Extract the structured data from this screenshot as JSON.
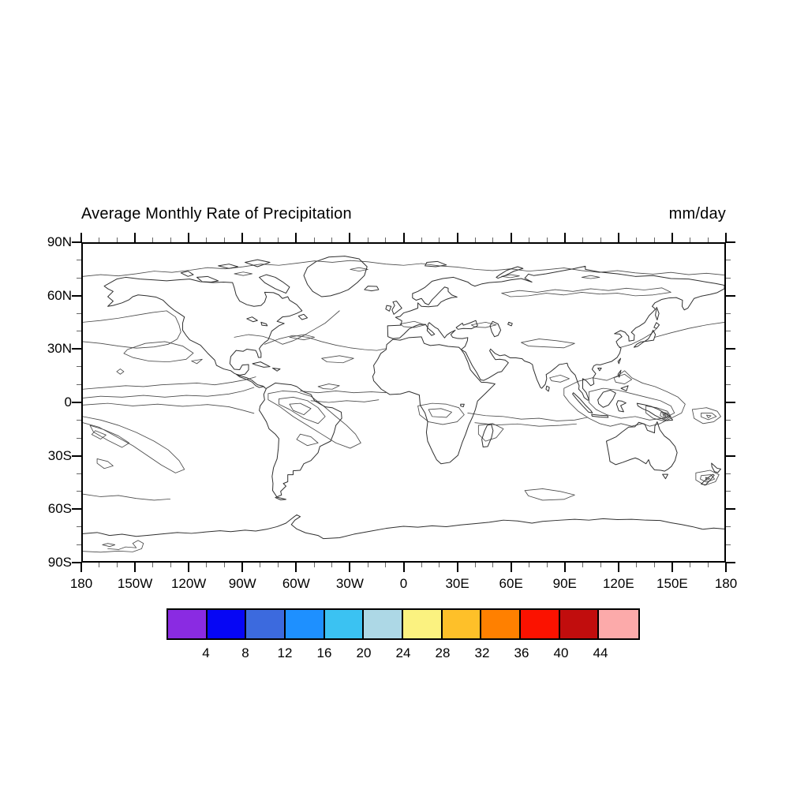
{
  "title": "Average Monthly Rate of Precipitation",
  "units_label": "mm/day",
  "chart_data": {
    "type": "contour",
    "title": "Average Monthly Rate of Precipitation",
    "units": "mm/day",
    "projection": "cylindrical equidistant world map, 90N-90S / 180W-180E",
    "grid": "off",
    "x_axis": {
      "tick_labels": [
        "180",
        "150W",
        "120W",
        "90W",
        "60W",
        "30W",
        "0",
        "30E",
        "60E",
        "90E",
        "120E",
        "150E",
        "180"
      ],
      "major_interval_deg": 30,
      "minor_interval_deg": 10,
      "range_deg": [
        -180,
        180
      ]
    },
    "y_axis": {
      "tick_labels": [
        "90N",
        "60N",
        "30N",
        "0",
        "30S",
        "60S",
        "90S"
      ],
      "major_interval_deg": 30,
      "minor_interval_deg": 10,
      "range_deg": [
        90,
        -90
      ]
    },
    "contour_interval_mm_per_day": 4,
    "colorbar": {
      "orientation": "horizontal",
      "position": "bottom",
      "boundary_labels": [
        "4",
        "8",
        "12",
        "16",
        "20",
        "24",
        "28",
        "32",
        "36",
        "40",
        "44"
      ],
      "colors": [
        "#8A2BE2",
        "#0606F5",
        "#3C6ADE",
        "#1E90FF",
        "#3BC2F2",
        "#ADD8E6",
        "#FBF280",
        "#FEC029",
        "#FF8000",
        "#FB1200",
        "#C10D0D",
        "#FCAAAA"
      ]
    }
  },
  "map_geometry": {
    "coastlines": [
      "M -168 -66 L -161 -70 -156 -71 -148 -70 -140 -69.5 -133 -69 -127 -69.5 -120 -70 -114 -68.5 -107 -68 -101 -68.3 -96 -68 -95 -65 -94 -61 -92 -57.5 -88 -55.5 -84 -54.5 -80 -55 -78 -57 -77 -60 -78 -62.5 -73 -62.3 -70 -61 -68 -59 -65 -60 -64 -58 -60 -55.5 -57 -52 -60 -50.5 -64 -49 -68 -48.5 -71 -46 -67 -44.8 -70 -43.5 -74 -40.5 -75 -38 -76 -35.5 -78 -34 -80 -32 -81 -30.5 -80 -28 -80 -25.5 -81.5 -25.5 -82 -27.5 -83 -29.5 -85 -29.8 -88 -30.2 -90 -29 -94 -29.5 -97 -26 -97.5 -22 -95 -18.8 -92 -18.6 -90.5 -21.2 -87 -21.5 -87 -18.5 -89 -16 -92 -15.5 -94 -16 -92 -14.5 -88 -13 -85 -11.5 -83 -9.5 -81 -8.5 -78.5 -9 -77.5 -8 -79 -9.3 -82 -10 -85 -12.5 -88 -14 -92 -15.2 -95 -16.5 -97 -18 -101 -19 -105 -21 -106 -24 -110 -28 -114 -32.5 -117 -34 -120 -35.5 -122 -38 -124 -41 -124 -45 -123 -48.5 -126 -50.5 -129 -52.5 -132 -55 -135 -58 -139 -59.8 -144 -60.5 -149 -61 -152 -60 -154 -58.3 -158 -56.5 -163 -55 -166 -54.5 -163 -57.5 -166 -60 -163 -63 -166 -64.5 Z",
      "M -46 -60 L -51 -63 -54 -67 -56 -72 -54 -76.5 -49 -80 -42 -82.5 -33 -83 -25 -81.5 -20.5 -77 -22 -72 -26 -68 -31 -64 -36 -62 -41 -60.5 Z",
      "M -66 -62 L -72 -64.5 -78 -68 -81 -71 -77 -72.5 -72 -71 -68 -68.5 -64 -65.5 Z",
      "M -104 -69 L -110 -71.5 -116 -71 -113 -68.5 -108 -68.3 Z",
      "M -82 -77 L -89 -79.5 -82 -81 -75 -79.5 Z",
      "M -98 -76 L -104 -77.5 -98 -78.5 -93 -77 Z",
      "M -121 -71.5 L -125 -73.5 -121 -74.5 -118 -72.5 Z",
      "M -57 -47 L -59 -49 -56 -50 -54 -48 Z",
      "M -22 -64 L -18 -63.3 -14 -64 -15 -65.8 -20 -66 Z",
      "M 12 -77.5 L 18 -77 24 -78 19 -80 13 -79.5 Z",
      "M 53 -70.5 L 57 -72 62 -74.5 67 -76 64 -77 58 -75 54 -72.5 52 -71 Z",
      "M -5.5 -50 L -3 -52 -1 -53.5 -2.5 -55.5 -4 -57.5 -6 -57 -5 -55 -6.5 -52.5 Z",
      "M -8 -51.8 L -10 -53 -9.5 -55 -7 -54.5 Z",
      "M -77 -8 L -72 -11 -68 -10.5 -63 -10 -60 -9 -56 -6 -52 -4.5 -50 -1 -47 0.8 -44 2.5 -40 3 -35 5.5 -34.7 9 -38 13 -39 17 -41 22 -47 25 -48 28.5 -52 33 -56 34.8 -58 38.5 -62 38.8 -62 41 -65 41 -65 45 -67.5 46 -66 47.5 -69 50.5 -68.5 52.5 -72 54 -69 55.3 -66 55 -71 53.8 -73.5 50 -73.3 46 -73.8 42 -73 37 -71 32 -70.3 26 -70 20.5 -72 18 -75.5 15 -77 11 -80 6 -81 4.5 -80.5 2 -78 -1.5 -78.5 -4.5 Z",
      "M -6 -35.8 L -2 -35.3 3 -36.8 10 -37.2 11.5 -33.5 15 -32.3 20 -32.8 25 -31.8 31 -31.3 32.3 -30 34 -27.5 36 -23 37.5 -18.5 40 -15.5 43.5 -11.5 47 -11.3 51.3 -10.5 45.8 -5 41.5 -0.8 40.3 4 38.8 8 36.5 13 34.8 18 32.8 23 30.5 30 26 34 21 34.8 18.5 32.5 16.5 28.5 13.5 22 12.8 17 13.5 11 12 6 9.3 1.5 8.8 -4.2 3 -6.2 -1.8 -4.8 -7.8 -4.5 -12.5 -7.5 -16.8 -12.3 -17.3 -14.8 -16.2 -17 -16.8 -21 -14.5 -24.5 -12.8 -27.8 -9.8 -30 -9.5 -32.8 Z",
      "M 49.2 12.5 L 50.2 16 49.3 20 47.2 25 44.6 25.3 43.9 21 45.3 16.5 46.9 13 Z",
      "M -9 -43.5 L -8.8 -37.3 -6 -36.2 -2.2 -36.6 0.2 -38.8 3.2 -41.8 7 -43.6 9 -44.2 12.3 -44.3 13.8 -42 16.2 -40 17.4 -38.7 15.7 -38 13.2 -40.8 13.8 -44.6 14.4 -45.3 17.8 -42.5 19.2 -41.8 21 -39.3 23 -36.6 24.2 -38.2 26.2 -39.6 29 -41 26.5 -38.5 27.5 -37 30.3 -36.3 33 -36.2 36 -36.8 35.8 -35 34.5 -31.8 32.3 -30 34.8 -28.5 36.5 -25 38.5 -21 41 -17 43.2 -12.8 45 -12.5 48 -14 52.8 -17 55 -17.5 58.8 -22.5 57 -24 54 -24.5 51.5 -24.3 50 -26.5 48.3 -29.3 48.8 -30.3 51.3 -27.8 54 -26.5 56.8 -27 59.8 -25.3 63 -25.3 66.5 -24.8 67.8 -23.5 70.8 -22.5 72.3 -21.5 72.8 -19 74.8 -13 76.8 -8.5 77.5 -8 79.5 -10.3 80.3 -13.5 80 -15.8 82.3 -17.3 85 -19.5 87.3 -21.5 89.3 -21.8 91.8 -22.3 92.3 -20.5 94 -17.8 96.3 -15.5 97.5 -12 98.5 -9.5 98.3 -7.5 100.3 -5.3 101.3 -2.8 103.3 -1.3 104 -1.4 102.5 -5.5 100.5 -8 100.5 -13.5 102.5 -12.3 105 -9.5 106.8 -10.5 106.3 -14 107.8 -16.3 105.8 -18.8 106.8 -20.8 108.3 -21.5 110.3 -21.3 113.5 -22.3 116.8 -23.3 119.8 -25.5 121.3 -28 122 -30.8 120.3 -32.3 119.3 -34.5 120.8 -36 122.5 -37.3 121.3 -38.8 118.3 -39 121.8 -40.8 124.3 -39.8 125.3 -38.5 126.3 -37.5 126.5 -34.8 129.3 -35.3 129.5 -38.3 127.8 -39.8 130.3 -42.3 132.3 -43.3 135.3 -45.3 137.8 -49.3 140.3 -51.8 141.3 -53 139.5 -54.5 141 -56.5 145 -58.5 149 -59.3 153 -59.5 156.5 -58 156.3 -54.5 157.5 -52.5 159.5 -53.5 161.3 -56.3 163 -59 167 -60.3 172 -61.3 176 -62.3 180 -64.5 180 -66.5 175 -67.5 170 -68.3 160 -70 150 -70.3 140 -72 130 -71.5 120 -73 110 -74 102 -75.5 102 -77.3 95 -75.8 88 -74.5 80 -73 73 -72 70 -72.8 68 -70.5 72 -68.3 66 -70.3 60 -69.5 55 -68.5 48 -68 44 -67.3 40 -66 38 -66.8 36 -68.3 33 -69.3 28 -71 22 -70.3 16 -68.8 12 -65.3 8 -63 5 -61.8 5 -59.3 7 -58 10 -59 12 -56.3 14 -55.4 16 -58.3 18 -60.3 21 -63.5 23 -65.5 25 -64.8 25 -63 27 -61 30 -59.8 27 -59.5 24 -58.5 21 -57 19 -54.8 14 -54.3 10 -54.5 9 -55.5 8 -56.5 8 -53.5 4 -52 0 -50.8 -2 -48.8 -4.5 -48.3 -1 -46.3 -1.5 -43.8 Z",
      "M 50 -46 L 53 -44.5 54.5 -41 53 -38 51 -37.3 49.5 -40 48.5 -43.5 Z",
      "M 29.5 -42.5 L 33 -45 33.5 -43.8 37 -45 40.5 -46.5 41.5 -43.5 38 -41.8 33.5 -42 30.5 -41.5 Z",
      "M 59 -45.5 L 61 -44.8 60.5 -43.5 58.5 -44.3 Z",
      "M -88 -47.5 L -85 -48.5 -82 -46.5 -84.5 -45.8 Z",
      "M -80 -45.5 L -77 -44.5 -76.5 -43.5 -79.5 -43.8 Z",
      "M 32 1 L 34 1 33.5 2.5 32 2 Z",
      "M 140.5 -42.5 L 141.8 -45.3 143.5 -44 142 -42 Z",
      "M 140 -41 L 141.3 -38.5 140.3 -35.3 136.8 -34.8 133 -34.3 130.8 -33 129.3 -31.3 131.3 -31.8 134 -33.8 137.3 -36 139 -38.8 Z",
      "M 142 -54 L 143.3 -50.5 142.3 -46.8 141.3 -49.5 Z",
      "M 120.3 -23.3 L 121.8 -25 120.8 -22 Z",
      "M 120.3 -16 L 122 -18.3 121 -14.3 Z",
      "M 122 -8 L 126 -9.5 125 -6.5 Z",
      "M 109 -19.5 L 111 -19.5 110 -18 Z",
      "M 109 -1.5 L 112 -5.8 116 -7 119 -5.3 117.5 -2 115 1.5 112 2.8 109.5 0.8 Z",
      "M 95.3 -5.5 L 99 -2 102 1.5 105 4.5 106 6 103.8 5.5 100.5 2 97 -2 94.8 -4.8 Z",
      "M 105.5 6.8 L 110 7.3 114.5 7.5 114.8 8.5 110 8.3 105.8 7.8 Z",
      "M 119.5 1 L 120.8 4.8 123.5 5.3 121.8 1.8 124.8 0.3 122.3 -0.8 120.3 -1 Z",
      "M 131 0.5 L 135 1.3 139 2.3 143 4 146 5.8 149 7.5 151 10 147.5 10.3 144 8.8 141 7.3 137.5 5 134 3.5 131.5 2 Z",
      "M 172.8 34.5 L 175.8 37.3 178 37.8 176.3 39.8 174.5 39.3 173 36.5 Z",
      "M 173.5 40.8 L 170.5 43 167 46.3 169.5 46.8 172.3 43.8 174.3 41.3 Z",
      "M 145.3 40.8 L 148.3 40.8 147 43.3 Z",
      "M -84.8 -22 L -80.3 -23 -75 -20.3 -78.5 -20 -83 -21.3 Z",
      "M -73.5 -19.5 L -69.3 -19 -71 -17.8 Z",
      "M 80.3 -9.3 L 81.8 -8.5 81.3 -6.3 79.9 -7.5 Z",
      "M 113.8 22 L 115.3 30 115.8 33.5 119 35.3 123 34 127.5 32.3 130 31.5 132 32.3 136 34.8 137.5 32.5 138.5 35.5 140.8 38.3 144.3 38.5 146.5 39 148.5 37.8 150.3 36.3 152.3 33 153.5 28.5 152.3 25 149.3 21.3 146.3 19 143.8 15.5 142.3 11 141 13.5 140.8 17.3 136.8 15.8 135.3 12.3 132 11.3 129.8 13.8 126.3 14 122.3 17 119.3 19.5 116 21 Z",
      "M -180 74.5 L -172 73.8 -165 75.5 -158 74.8 -150 76 -142 75.3 -134 74.5 -127 73.8 -119 74.3 -111 73.5 -103 72.8 -97 73.3 -89 72.5 -83 73 -77 72 -71 70.5 -66 68.5 -62 65.3 -60 63.8 -58 64.8 -61 66.8 -63 69.3 -60 71.8 -55 74 -48 75.5 -45 77.3 -36 76.8 -28 74.8 -20 73.3 -10 71.5 0 70.3 8 70.8 16 70 24 70.5 32 69.5 40 68.8 48 68 56 66.8 64 67.3 72 68.5 78 67.5 88 66.8 96 66.3 104 66.8 112 66 120 66.5 128 66.3 136 66.8 144 67 150 68.3 156 69.3 162 70.5 168 72 174 71.3 180 71.8"
    ],
    "contours": [
      "M -180 -71.5 L -170 -72.5 -160 -71.8 -150 -73 -140 -74.5 -130 -73.8 -120 -75 -110 -76.5 -100 -75.8 -90 -77 -80 -78.5 -70 -77.8 -60 -79 -50 -80.3 -40 -79.5 -30 -80.5 -20 -79.8 -10 -78.5 0 -77.8 10 -78.8 20 -77.5 30 -76.8 40 -75.5 50 -74.8 60 -75.8 70 -74.5 80 -75.3 90 -76.3 100 -74.8 110 -73.8 120 -74.8 130 -73.5 140 -72.8 150 -73.8 160 -72.5 170 -73.3 180 -72.3",
      "M -95 -73 L -90 -74 -85 -73 -90 -72 Z",
      "M 55 -71.5 L 60 -72.5 65 -71.8 60 -70.8 Z",
      "M 100 -71 L 105 -72 110 -71 105 -70.3 Z",
      "M -30 -75.5 L -25 -76.5 -20 -75.5 -25 -74.5 Z",
      "M 141 -37 L 150 -39.5 160 -42 170 -44 180 -45.5",
      "M -180 -45.5 L -170 -46.5 -160 -47.8 -150 -49.5 -141 -51 -133 -52 -128 -48.5 -126 -44 -125 -40 -127 -36 -132 -33 -140 -31.5 -150 -30.8 -160 -32 -170 -33.5 -180 -34.5",
      "M -155 -30 L -145 -33.5 -134 -34.5 -124 -32 -118 -28 -122 -24.5 -132 -23 -143 -23.5 -152 -25.5 -157 -27.8 Z",
      "M -119 -23.5 L -113 -24.5 -116 -22 Z",
      "M -159 -19 L -157 -17.5 -159 -16 -161 -17.5 Z",
      "M -180 -7.5 L -168 -8.5 -156 -9.5 -146 -9 -136 -10 -126 -10.5 -116 -11 -106 -10 -96 -11.5 -88 -13 -83 -14.5",
      "M -180 -2.5 L -170 -3.5 -158 -3 -146 -4 -134 -3 -122 -4 -110 -3.5 -98 -4.8 -90 -6.5 -84 -8.5",
      "M -180 1.5 L -166 0.5 -152 2 -138 1 -124 2.2 -110 1.2 -98 2.5 -90 4.5 -84 6.2",
      "M -180 8 L -170 10 -160 13 -150 17 -140 22 -132 27 -126 33 -123 38 -128 40 -136 35.5 -144 30 -152 24.5 -162 19 -171 14 -180 11.5",
      "M -176 13 L -168 15.5 -160 19 -154 23 -158 25.5 -166 21.5 -174 16.8 Z",
      "M -173 16 L -167 18.5 -170 20.8 -175 18.2 Z",
      "M -172 32 L -166 33.5 -163 36 -168 37.5 -172 34.5 Z",
      "M -58 -6.5 L -48 -5.5 -38 -6.5 -28 -5.5 -18 -6 -10 -5.5",
      "M -52 -1 L -42 0 -32 -1 -22 -0.3 -14 -1.5",
      "M -48 -9 L -42 -10.5 -36 -9.5 -40 -7.5 -45 -7.8 Z",
      "M -76 -5 L -68 -6.5 -60 -6 -52 -3.5 -45 2 -38 8 -32 13 -27 18 -24 23 -30 26 -38 23 -46 18 -54 13 -62 8 -70 2 -76 -1.5 Z",
      "M -70 -2 L -62 -3 -54 -1 -48 3 -44 8 -48 12 -56 9 -64 4 -70 1 Z",
      "M -64 1 L -58 0.5 -52 3.5 -56 7 -62 4.5 Z",
      "M -58 18 L -52 19.5 -48 23 -54 24.5 -60 21 Z",
      "M 8 2 L 16 0.5 24 1 31 3 34 7 30 11 22 12.5 14 11 9 7 Z",
      "M 14 4 L 21 3.5 27 5.5 24 8.5 16 8 Z",
      "M 36 6 L 46 7.5 56 8 66 9.5 76 9 86 10.5 96 10 103 8.5",
      "M 40 11.5 L 52 12.8 64 12.2 76 13.5 88 13 97 12.2",
      "M 42 13 L 50 12 56 15 52 20 46 22 42 18 Z",
      "M 82 -14 L 88 -15.5 93 -13.5 88 -11.5 83 -12.3 Z",
      "M 90 -8 L 98 -12 106 -14 114 -12.5 120 -15 124 -18 128 -14 134 -11 141 -9 148 -6 154 -3 158 1 156 6 150 9 144 12 138 13.5 134 12 128 13.5 122 12 116 13.5 110 12 104 9 98 5 93 0 90 -4 Z",
      "M 104 -6 L 112 -8 120 -7 128 -5 136 -3 144 -1 150 2 152 6 146 9 138 10 130 8 122 9 114 7 108 4 104 0 Z",
      "M 136 2 L 142 3 148 5 150 8 146 10.5 140 9 136 6 Z",
      "M 144.5 5.5 L 148 6 149.2 8 146.5 9.2 144 7.5 Z",
      "M 145.3 6.2 L 147.8 6.7 148.2 8 146.2 8.5 Z",
      "M 146 6.9 L 147.3 7.2 147 8 Z",
      "M 162 4 L 170 3 176 5 178 8 174 11 168 12 163 9 Z",
      "M 167 6 L 173 6 175.5 8 171 9.8 167 8.2 Z",
      "M 170 7.2 L 172.5 7.6 171 8.8 Z",
      "M 118 -14 L 124 -16 128 -13 124 -10.5 119 -11.5 Z",
      "M 164 40 L 172 38.5 177 41 175 45 169 47 164 44 Z",
      "M 167 41.5 L 172.5 41 174.5 43.5 170 45.2 166.5 43.5 Z",
      "M 169.5 42.5 L 171.8 43.3 169.8 44.2 Z",
      "M -180 52 L -170 53.5 -160 52.8 -150 54.5 -140 55.5 -131 54.8",
      "M 68 50 L 78 49 88 50.5 96 52.5 90 55 78 55.5 70 53 Z",
      "M -180 84.5 L -170 85 -160 84.3 -152 84.8 -147 83 -146 80 -149 78.3 -152 80 -150 82.5 -156 82 -160 83.5 -166 83",
      "M -166 80 L -162 80.8 -165 81.8 -169 80.8 Z",
      "M -95 -37 L -87 -38.5 -79 -37.5 -73 -35.5 -68 -33 -62 -35 -56 -38 -50 -41.5 -44 -45 -40 -48.5 -36 -52",
      "M -78 -33 L -70 -36 -62 -38 -54 -37 -46 -34.5 -38 -32.5 -30 -31 -22 -30 -15 -29.5 -10 -30.5",
      "M -64 -37 L -56 -38.5 -50 -37 -56 -35.5 Z",
      "M -46 -25 L -36 -26.5 -28 -25 -34 -22.5 -43 -23 Z",
      "M 38 -44 L 46 -45.5 52 -44 46 -42.5 40 -42.8 Z",
      "M 66 -34 L 76 -36 86 -35 96 -33.5 90 -31 80 -31.5 70 -32 Z",
      "M 55 -62 L 65 -63.5 75 -62.5 85 -64 95 -63 105 -64.5 115 -63.5 125 -64.8 135 -63.8 145 -65 150 -62.5 140 -61 130 -60.5 120 -62 110 -61.5 100 -62.5 90 -61 80 -62 70 -60.5 60 -60 Z",
      "M -2 -44.5 L 6 -46 12 -44 6 -42.5 0 -43 Z",
      "M 121 -31 L 128 -33 134 -36 139 -39 142 -42"
    ]
  }
}
